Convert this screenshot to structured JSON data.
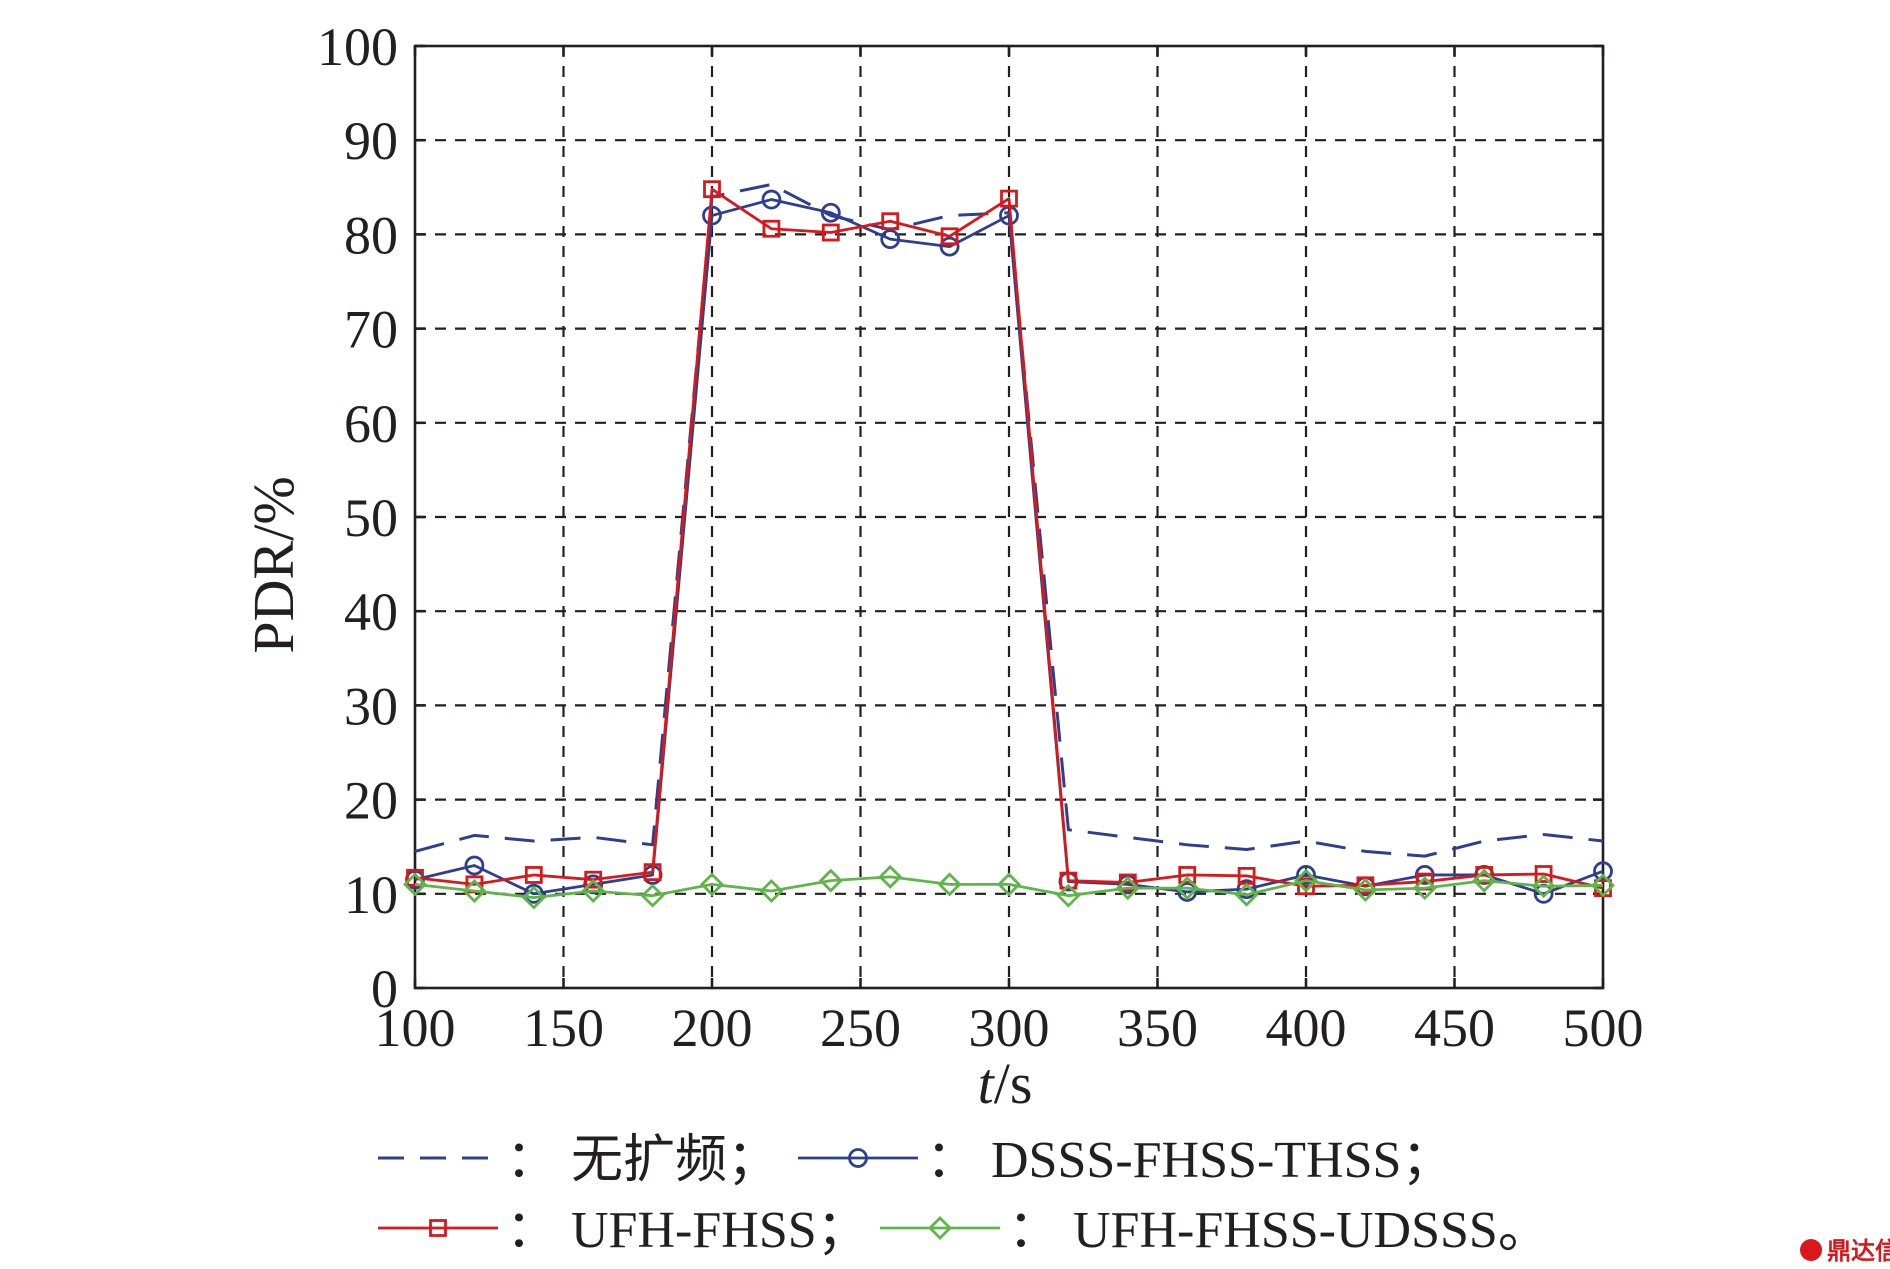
{
  "chart_data": {
    "type": "line",
    "xlabel_italic": "t",
    "xlabel_unit": "/s",
    "ylabel": "PDR/%",
    "xlim": [
      100,
      500
    ],
    "ylim": [
      0,
      100
    ],
    "xticks": [
      100,
      150,
      200,
      250,
      300,
      350,
      400,
      450,
      500
    ],
    "yticks": [
      0,
      10,
      20,
      30,
      40,
      50,
      60,
      70,
      80,
      90,
      100
    ],
    "grid": true,
    "x": [
      100,
      120,
      140,
      160,
      180,
      200,
      220,
      240,
      260,
      280,
      300,
      320,
      340,
      360,
      380,
      400,
      420,
      440,
      460,
      480,
      500
    ],
    "series": [
      {
        "name": "无扩频",
        "color": "#2e3f8f",
        "style": "dashed",
        "marker": "none",
        "values": [
          14.5,
          16.2,
          15.6,
          16.0,
          15.2,
          84.0,
          85.3,
          82.0,
          80.5,
          82.0,
          82.3,
          16.8,
          16.0,
          15.2,
          14.7,
          15.6,
          14.5,
          14.0,
          15.6,
          16.3,
          15.6
        ]
      },
      {
        "name": "DSSS-FHSS-THSS",
        "color": "#2e3f8f",
        "style": "solid",
        "marker": "circle",
        "values": [
          11.5,
          13.0,
          10.0,
          11.0,
          12.0,
          82.0,
          83.7,
          82.3,
          79.5,
          78.7,
          82.0,
          11.3,
          11.0,
          10.2,
          10.5,
          12.0,
          10.8,
          12.0,
          12.0,
          10.0,
          12.4
        ]
      },
      {
        "name": "UFH-FHSS",
        "color": "#d7191c",
        "style": "solid",
        "marker": "square",
        "values": [
          11.7,
          11.0,
          12.0,
          11.5,
          12.3,
          84.8,
          80.6,
          80.2,
          81.4,
          79.8,
          83.8,
          11.4,
          11.2,
          12.0,
          11.9,
          10.8,
          10.9,
          11.3,
          12.0,
          12.1,
          10.6
        ]
      },
      {
        "name": "UFH-FHSS-UDSSS",
        "color": "#5fb54a",
        "style": "solid",
        "marker": "diamond",
        "values": [
          11.0,
          10.3,
          9.6,
          10.3,
          9.8,
          11.0,
          10.3,
          11.4,
          11.8,
          11.0,
          11.0,
          9.8,
          10.6,
          10.6,
          9.9,
          11.4,
          10.4,
          10.6,
          11.4,
          10.8,
          10.9
        ]
      }
    ],
    "legend_separator": "：",
    "legend_end_marks": [
      "；",
      "；",
      "；",
      "。"
    ]
  },
  "watermark": {
    "text": "鼎达信",
    "color": "#d7191c"
  }
}
